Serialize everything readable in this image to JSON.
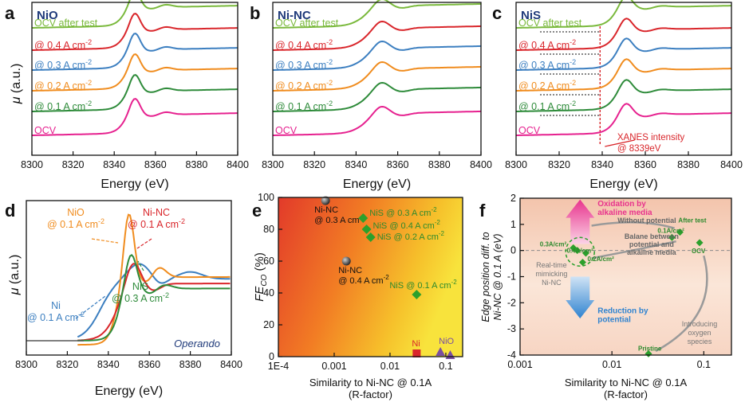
{
  "panel_letters": {
    "a": "a",
    "b": "b",
    "c": "c",
    "d": "d",
    "e": "e",
    "f": "f"
  },
  "colors": {
    "OCV": "#e6218f",
    "0.1": "#2e8b3a",
    "0.2": "#f08c1e",
    "0.3": "#3c7fc0",
    "0.4": "#d9262b",
    "after": "#7ab93c",
    "d_Ni": "#3c7fc0",
    "d_NiO": "#f08c1e",
    "d_NiNC": "#d9262b",
    "d_NiS": "#2e8b3a",
    "marker_green": "#2ca02c",
    "navy": "#1f3a7a",
    "dashed_red": "#d9262b"
  },
  "chart_data": [
    {
      "id": "a",
      "type": "line",
      "title": "NiO",
      "xlabel": "Energy (eV)",
      "ylabel": "μ (a.u.)",
      "xlim": [
        8300,
        8400
      ],
      "xticks": [
        "8300",
        "8320",
        "8340",
        "8360",
        "8380",
        "8400"
      ],
      "series": [
        {
          "name": "OCV after test",
          "color_key": "after",
          "offset": 5,
          "shape": "NiO"
        },
        {
          "name": "@ 0.4 A cm",
          "sup": "-2",
          "color_key": "0.4",
          "offset": 4,
          "shape": "NiO"
        },
        {
          "name": "@ 0.3 A cm",
          "sup": "-2",
          "color_key": "0.3",
          "offset": 3,
          "shape": "NiO"
        },
        {
          "name": "@ 0.2 A cm",
          "sup": "-2",
          "color_key": "0.2",
          "offset": 2,
          "shape": "NiO"
        },
        {
          "name": "@ 0.1 A cm",
          "sup": "-2",
          "color_key": "0.1",
          "offset": 1,
          "shape": "NiO"
        },
        {
          "name": "OCV",
          "color_key": "OCV",
          "offset": 0,
          "shape": "NiO"
        }
      ]
    },
    {
      "id": "b",
      "type": "line",
      "title": "Ni-NC",
      "xlabel": "Energy (eV)",
      "xlim": [
        8300,
        8400
      ],
      "xticks": [
        "8300",
        "8320",
        "8340",
        "8360",
        "8380",
        "8400"
      ],
      "series": [
        {
          "name": "OCV after test",
          "color_key": "after",
          "offset": 5,
          "shape": "NiNC"
        },
        {
          "name": "@ 0.4 A cm",
          "sup": "-2",
          "color_key": "0.4",
          "offset": 4,
          "shape": "NiNC"
        },
        {
          "name": "@ 0.3 A cm",
          "sup": "-2",
          "color_key": "0.3",
          "offset": 3,
          "shape": "NiNC"
        },
        {
          "name": "@ 0.2 A cm",
          "sup": "-2",
          "color_key": "0.2",
          "offset": 2,
          "shape": "NiNC"
        },
        {
          "name": "@ 0.1 A cm",
          "sup": "-2",
          "color_key": "0.1",
          "offset": 1,
          "shape": "NiNC"
        },
        {
          "name": "OCV",
          "color_key": "OCV",
          "offset": 0,
          "shape": "NiNC"
        }
      ]
    },
    {
      "id": "c",
      "type": "line",
      "title": "NiS",
      "xlabel": "Energy (eV)",
      "xlim": [
        8300,
        8400
      ],
      "xticks": [
        "8300",
        "8320",
        "8340",
        "8360",
        "8380",
        "8400"
      ],
      "annotation": "XANES intensity",
      "annotation2": "@ 8339eV",
      "series": [
        {
          "name": "OCV after test",
          "color_key": "after",
          "offset": 5,
          "shape": "NiS"
        },
        {
          "name": "@ 0.4 A cm",
          "sup": "-2",
          "color_key": "0.4",
          "offset": 4,
          "shape": "NiS"
        },
        {
          "name": "@ 0.3 A cm",
          "sup": "-2",
          "color_key": "0.3",
          "offset": 3,
          "shape": "NiS"
        },
        {
          "name": "@ 0.2 A cm",
          "sup": "-2",
          "color_key": "0.2",
          "offset": 2,
          "shape": "NiS"
        },
        {
          "name": "@ 0.1 A cm",
          "sup": "-2",
          "color_key": "0.1",
          "offset": 1,
          "shape": "NiS"
        },
        {
          "name": "OCV",
          "color_key": "OCV",
          "offset": 0,
          "shape": "NiS"
        }
      ]
    },
    {
      "id": "d",
      "type": "line",
      "xlabel": "Energy (eV)",
      "ylabel": "μ (a.u.)",
      "xlim": [
        8300,
        8400
      ],
      "xticks": [
        "8300",
        "8320",
        "8340",
        "8360",
        "8380",
        "8400"
      ],
      "annotation": "Operando",
      "series": [
        {
          "name": "Ni",
          "label2": "@ 0.1 A cm",
          "sup": "-2",
          "color_key": "d_Ni",
          "shape": "Ni"
        },
        {
          "name": "NiO",
          "label2": "@ 0.1 A cm",
          "sup": "-2",
          "color_key": "d_NiO",
          "shape": "NiO"
        },
        {
          "name": "Ni-NC",
          "label2": "@ 0.1 A cm",
          "sup": "-2",
          "color_key": "d_NiNC",
          "shape": "NiNC"
        },
        {
          "name": "NiS",
          "label2": "@ 0.3 A cm",
          "sup": "-2",
          "color_key": "d_NiS",
          "shape": "NiS"
        }
      ]
    },
    {
      "id": "e",
      "type": "scatter",
      "xlabel": "Similarity to Ni-NC @ 0.1A",
      "xlabel2": "(R-factor)",
      "ylabel": "FE",
      "ylabel_sub": "CO",
      "ylabel_unit": "(%)",
      "xscale": "log",
      "xlim": [
        0.0001,
        0.2
      ],
      "ylim": [
        0,
        100
      ],
      "xticks": [
        "1E-4",
        "0.001",
        "0.01",
        "0.1"
      ],
      "yticks": [
        "0",
        "20",
        "40",
        "60",
        "80",
        "100"
      ],
      "points": [
        {
          "x": 0.0007,
          "y": 98,
          "marker": "sphere",
          "label": "Ni-NC",
          "label2": "@ 0.3 A cm",
          "sup": "-2"
        },
        {
          "x": 0.00165,
          "y": 60,
          "marker": "sphere",
          "label": "Ni-NC",
          "label2": "@ 0.4 A cm",
          "sup": "-2"
        },
        {
          "x": 0.0033,
          "y": 87,
          "marker": "diamond",
          "label": "NiS @ 0.3 A cm",
          "sup": "-2"
        },
        {
          "x": 0.0038,
          "y": 80,
          "marker": "diamond",
          "label": "NiS @ 0.4 A cm",
          "sup": "-2"
        },
        {
          "x": 0.0045,
          "y": 75,
          "marker": "diamond",
          "label": "NiS @ 0.2 A cm",
          "sup": "-2"
        },
        {
          "x": 0.03,
          "y": 39,
          "marker": "diamond",
          "label": "NiS @ 0.1 A cm",
          "sup": "-2"
        },
        {
          "x": 0.03,
          "y": 2,
          "marker": "square",
          "label": "Ni"
        },
        {
          "x": 0.08,
          "y": 3,
          "marker": "triangle",
          "label": "NiO"
        },
        {
          "x": 0.12,
          "y": 1,
          "marker": "triangle",
          "label": ""
        }
      ]
    },
    {
      "id": "f",
      "type": "scatter",
      "xlabel": "Similarity to Ni-NC @ 0.1A",
      "xlabel2": "(R-factor)",
      "ylabel": "Edge position diff. to",
      "ylabel2": "Ni-NC @ 0.1 A (eV)",
      "xscale": "log",
      "xlim": [
        0.001,
        0.2
      ],
      "ylim": [
        -4,
        2
      ],
      "xticks": [
        "0.001",
        "0.01",
        "0.1"
      ],
      "yticks": [
        "-4",
        "-3",
        "-2",
        "-1",
        "0",
        "1",
        "2"
      ],
      "points": [
        {
          "x": 0.0038,
          "y": 0.1,
          "label": "0.3A/cm²"
        },
        {
          "x": 0.0042,
          "y": 0.0,
          "label": ""
        },
        {
          "x": 0.0048,
          "y": -0.45,
          "label": "0.4A/cm²"
        },
        {
          "x": 0.0052,
          "y": -0.1,
          "label": "0.2A/cm²"
        },
        {
          "x": 0.045,
          "y": 0.5,
          "label": "0.1A/cm²"
        },
        {
          "x": 0.055,
          "y": 0.7,
          "label": "After test"
        },
        {
          "x": 0.09,
          "y": 0.3,
          "label": "OCV"
        },
        {
          "x": 0.025,
          "y": -3.95,
          "label": "Pristine"
        }
      ],
      "annotations": {
        "ox1": "Oxidation by",
        "ox2": "alkaline media",
        "red1": "Reduction by",
        "red2": "potential",
        "wo": "Without potential",
        "bal1": "Balane between",
        "bal2": "potential and",
        "bal3": "alkaline media",
        "rt1": "Real-time",
        "rt2": "mimicking",
        "rt3": "Ni-NC",
        "io1": "Introducing",
        "io2": "oxygen",
        "io3": "species"
      }
    }
  ]
}
